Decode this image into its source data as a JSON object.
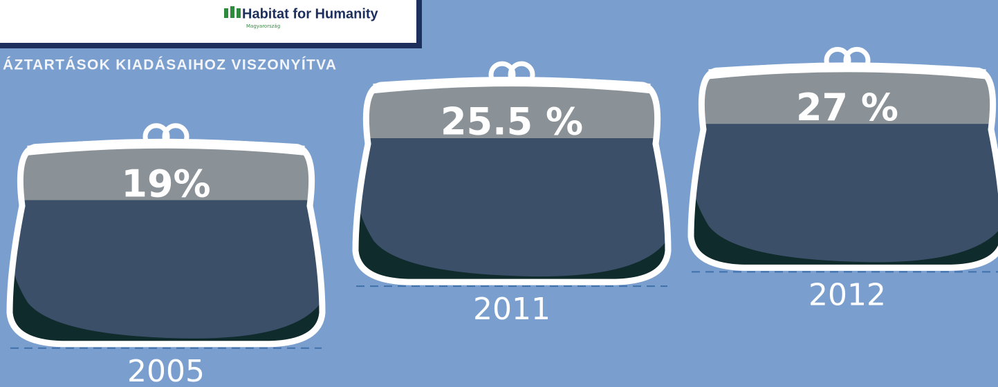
{
  "chart_data": {
    "type": "pictorial",
    "logo": "Habitat for Humanity",
    "logo_subtitle": "Magyarország",
    "subtitle": "ÁZTARTÁSOK KIADÁSAIHOZ VISZONYÍTVA",
    "categories": [
      "2005",
      "2011",
      "2012"
    ],
    "values": [
      19,
      25.5,
      27
    ],
    "value_labels": [
      "19%",
      "25.5 %",
      "27 %"
    ],
    "colors": {
      "top": "#8a9297",
      "fill": "#3b4f69",
      "shadow": "#0f2b2c",
      "outline": "#ffffff"
    }
  }
}
